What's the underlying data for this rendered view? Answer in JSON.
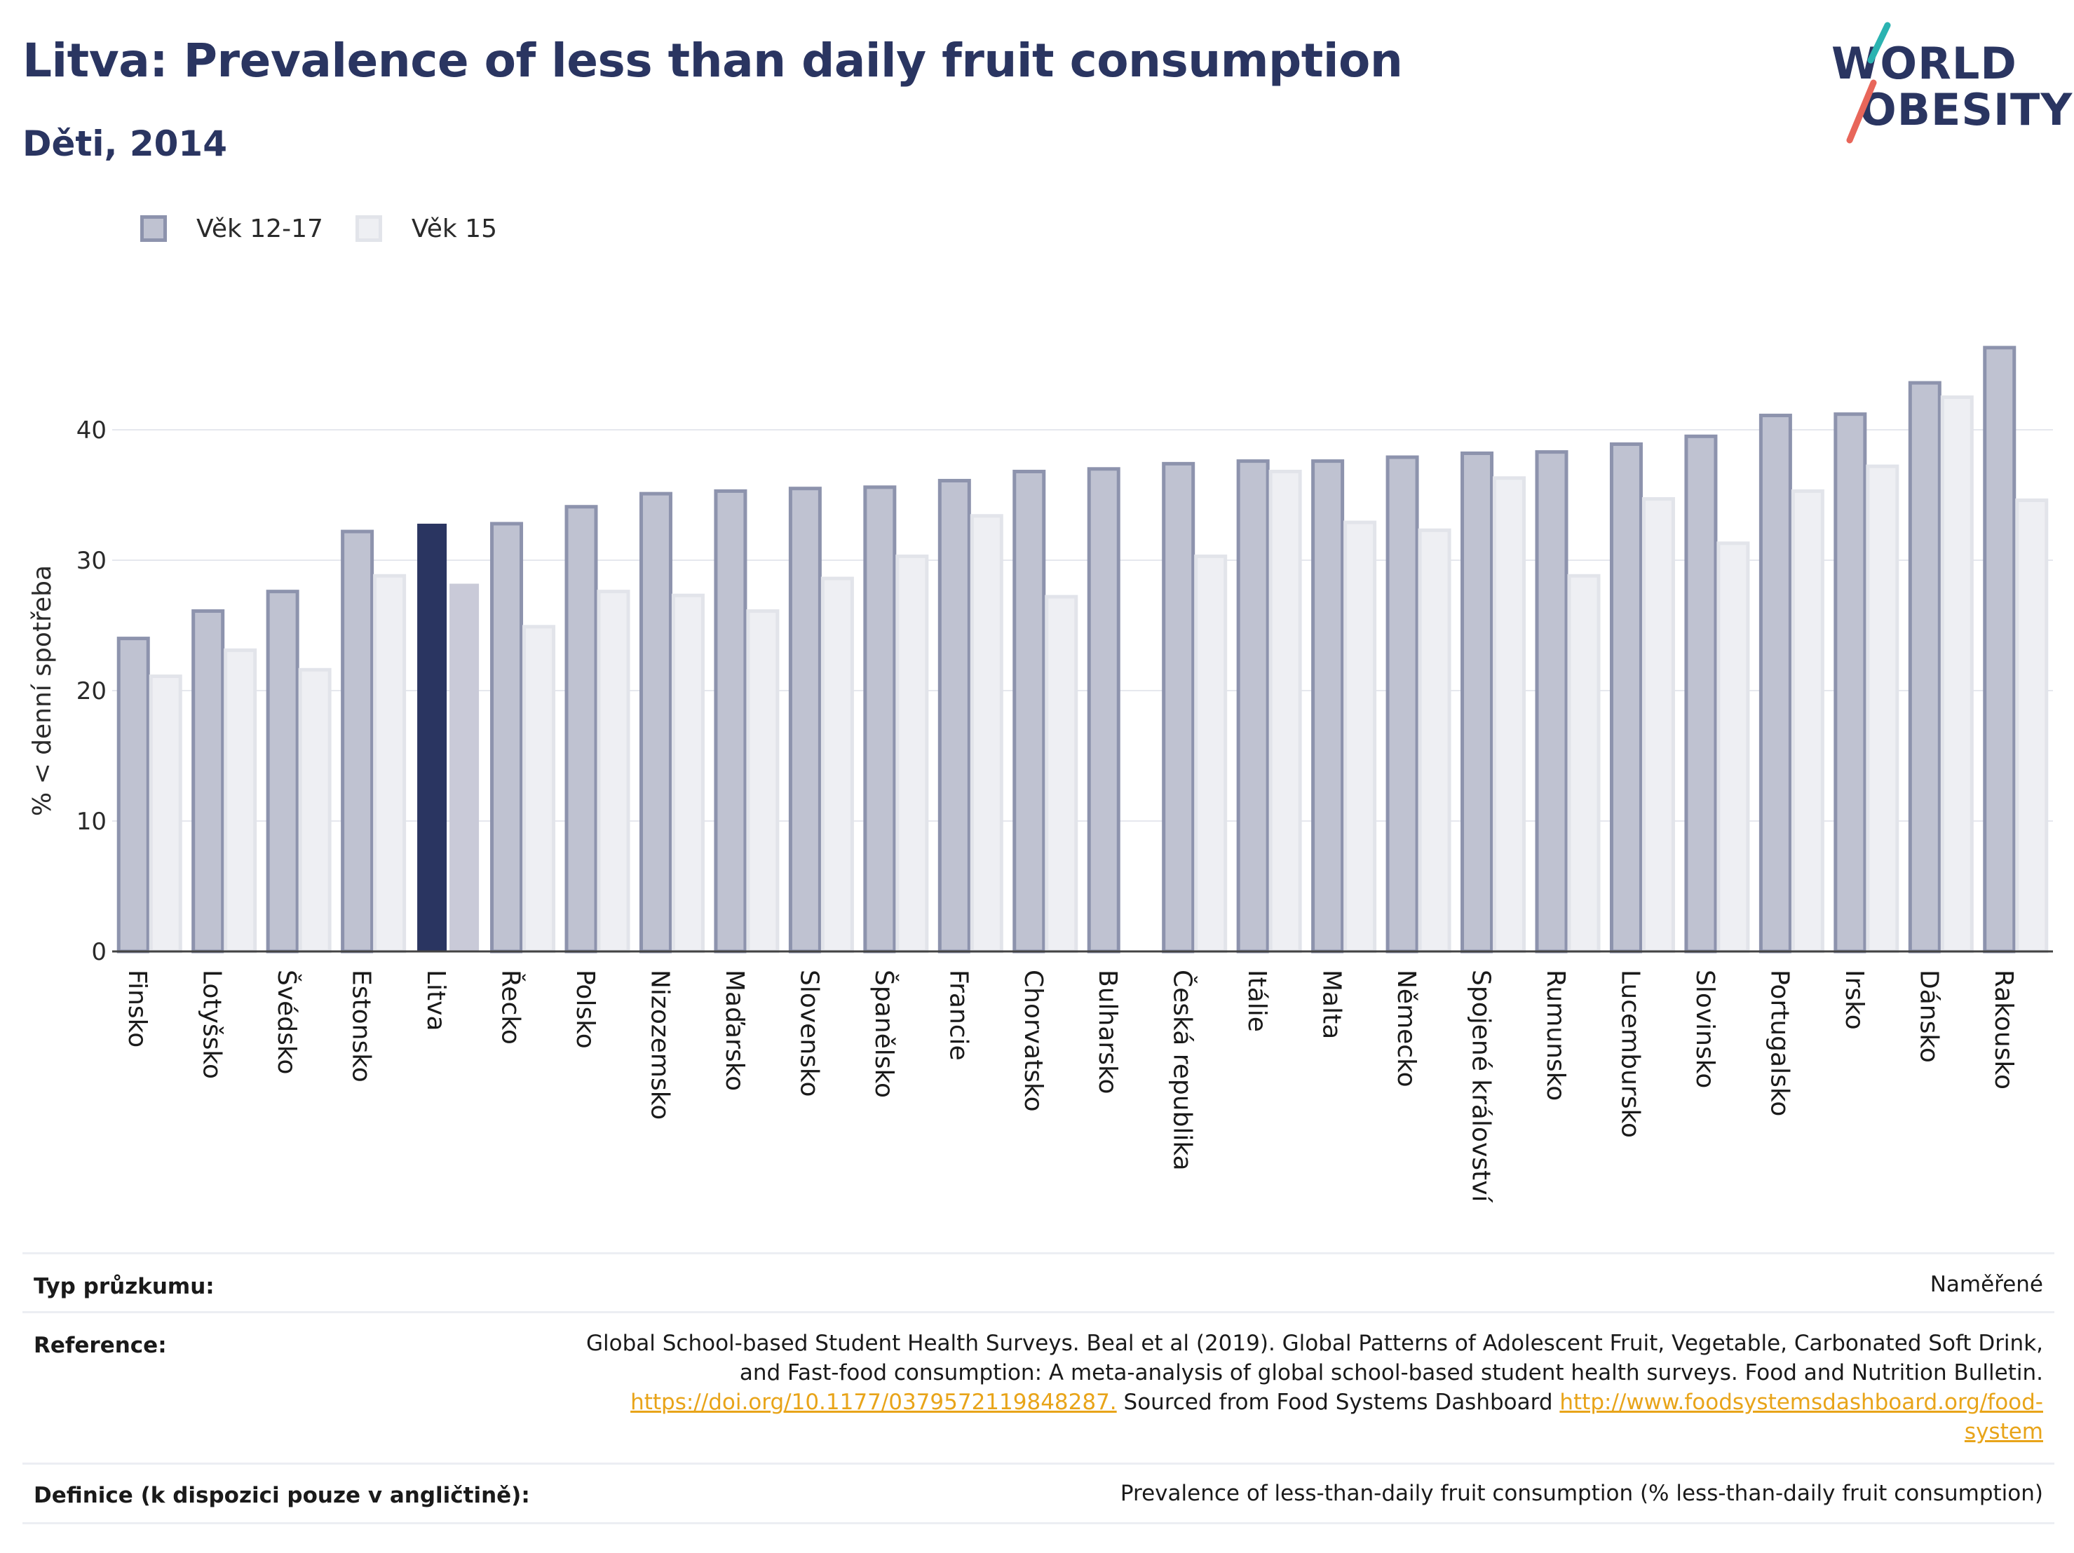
{
  "header": {
    "title": "Litva: Prevalence of less than daily fruit consumption",
    "subtitle": "Děti, 2014"
  },
  "logo": {
    "line1": "WORLD",
    "line2": "OBESITY",
    "colors": {
      "text": "#2a3561",
      "slash_top": "#2bb3b1",
      "slash_bottom": "#e8665a"
    }
  },
  "legend": [
    {
      "label": "Věk 12-17",
      "color": "#bfc2d1"
    },
    {
      "label": "Věk 15",
      "color": "#eeeff3"
    }
  ],
  "colors": {
    "series1": "#bfc2d1",
    "series1_border": "#8d93ad",
    "series2": "#eeeff3",
    "series2_border": "#e2e4ea",
    "highlight1": "#2a3561",
    "highlight2": "#c9cad8",
    "grid": "#e6e8ee",
    "axis": "#444444"
  },
  "chart_data": {
    "type": "bar",
    "ylabel": "% < denní spotřeba",
    "xlabel": "",
    "ylim": [
      0,
      50
    ],
    "yticks": [
      0,
      10,
      20,
      30,
      40
    ],
    "grid": true,
    "legend_position": "top-left",
    "highlight_category": "Litva",
    "categories": [
      "Finsko",
      "Lotyšsko",
      "Švédsko",
      "Estonsko",
      "Litva",
      "Řecko",
      "Polsko",
      "Nizozemsko",
      "Maďarsko",
      "Slovensko",
      "Španělsko",
      "Francie",
      "Chorvatsko",
      "Bulharsko",
      "Česká republika",
      "Itálie",
      "Malta",
      "Německo",
      "Spojené království",
      "Rumunsko",
      "Lucembursko",
      "Slovinsko",
      "Portugalsko",
      "Irsko",
      "Dánsko",
      "Rakousko"
    ],
    "series": [
      {
        "name": "Věk 12-17",
        "values": [
          24.0,
          26.1,
          27.6,
          32.2,
          32.8,
          32.8,
          34.1,
          35.1,
          35.3,
          35.5,
          35.6,
          36.1,
          36.8,
          37.0,
          37.4,
          37.6,
          37.6,
          37.9,
          38.2,
          38.3,
          38.9,
          39.5,
          41.1,
          41.2,
          43.6,
          46.3
        ]
      },
      {
        "name": "Věk 15",
        "values": [
          21.1,
          23.1,
          21.6,
          28.8,
          28.2,
          24.9,
          27.6,
          27.3,
          26.1,
          28.6,
          30.3,
          33.4,
          27.2,
          null,
          30.3,
          36.8,
          32.9,
          32.3,
          36.3,
          28.8,
          34.7,
          31.3,
          35.3,
          37.2,
          42.5,
          34.6
        ]
      }
    ]
  },
  "table": [
    {
      "label": "Typ průzkumu:",
      "value": "Naměřené"
    },
    {
      "label": "Reference:",
      "value_line1": "Global School-based Student Health Surveys. Beal et al (2019). Global Patterns of Adolescent Fruit, Vegetable, Carbonated Soft Drink,",
      "value_line2": "and Fast-food consumption: A meta-analysis of global school-based student health surveys. Food and Nutrition Bulletin.",
      "link1": "https://doi.org/10.1177/0379572119848287.",
      "mid_text": " Sourced from Food Systems Dashboard ",
      "link2_part1": "http://www.foodsystemsdashboard.org/food-",
      "link2_part2": "system"
    },
    {
      "label": "Definice (k dispozici pouze v angličtině):",
      "value": "Prevalence of less-than-daily fruit consumption (% less-than-daily fruit consumption)"
    }
  ]
}
